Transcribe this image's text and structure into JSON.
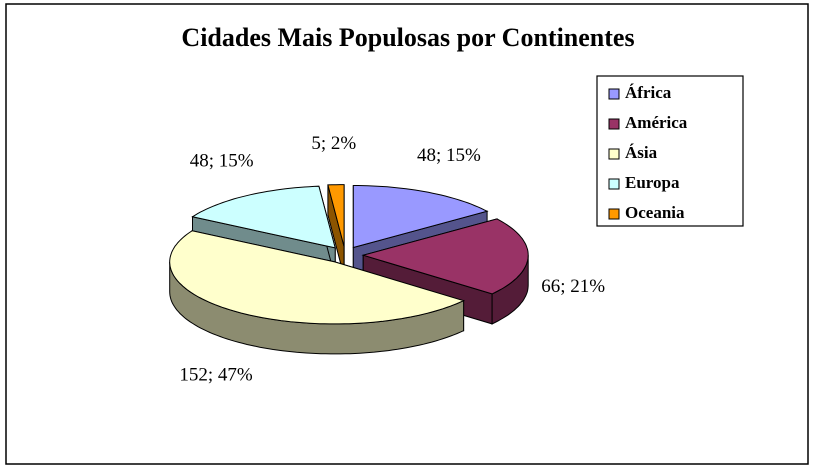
{
  "chart_data": {
    "type": "pie",
    "title": "Cidades Mais Populosas por Continentes",
    "categories": [
      "África",
      "América",
      "Ásia",
      "Europa",
      "Oceania"
    ],
    "values": [
      48,
      66,
      152,
      48,
      5
    ],
    "value_labels": [
      "48; 15%",
      "66; 21%",
      "152; 47%",
      "48; 15%",
      "5; 2%"
    ],
    "colors": [
      "#9999ff",
      "#993366",
      "#ffffcc",
      "#ccffff",
      "#ff9900"
    ],
    "legend": "right"
  }
}
